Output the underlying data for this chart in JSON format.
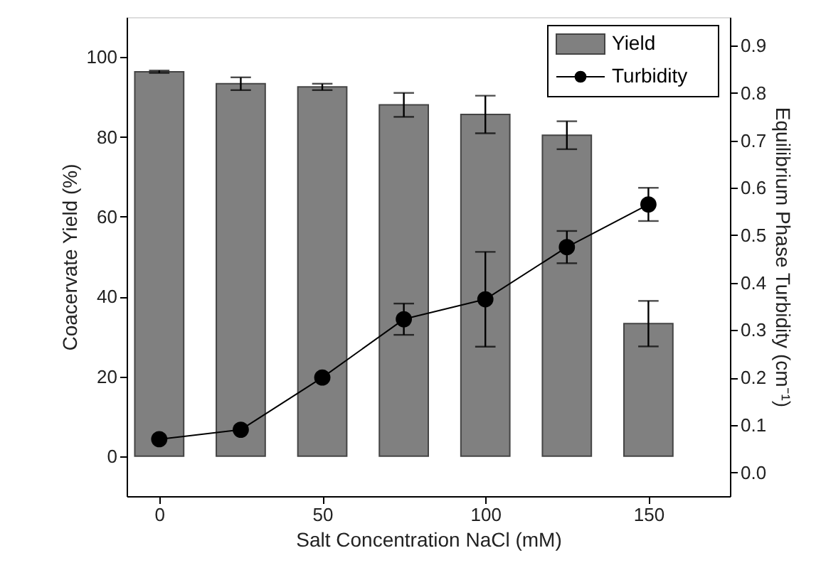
{
  "chart_data": {
    "type": "bar",
    "xlabel": "Salt Concentration NaCl (mM)",
    "ylabel": "Coacervate Yield (%)",
    "y2label": "Equilibrium Phase Turbidity (cm⁻¹)",
    "x": [
      0,
      25,
      50,
      75,
      100,
      125,
      150
    ],
    "xlim": [
      -10,
      175
    ],
    "xticks": [
      0,
      50,
      100,
      150
    ],
    "ylim": [
      -10,
      110
    ],
    "yticks": [
      0,
      20,
      40,
      60,
      80,
      100
    ],
    "y2lim": [
      -0.05,
      0.96
    ],
    "y2ticks": [
      {
        "value": 0,
        "label": "0.0"
      },
      0.1,
      0.2,
      0.3,
      0.4,
      0.5,
      0.6,
      0.7,
      0.8,
      0.9
    ],
    "series": [
      {
        "name": "Yield",
        "color": "#808080",
        "values": [
          96.3,
          93.3,
          92.5,
          88,
          85.6,
          80.4,
          33.2
        ],
        "errors": [
          0.3,
          1.6,
          0.8,
          3,
          4.7,
          3.5,
          5.7
        ]
      },
      {
        "name": "Turbidity",
        "type": "line",
        "axis": "y2",
        "color": "#000000",
        "marker": "circle",
        "values": [
          0.07,
          0.09,
          0.2,
          0.323,
          0.365,
          0.475,
          0.565
        ],
        "errors": [
          null,
          null,
          null,
          0.033,
          0.1,
          0.034,
          0.035
        ]
      }
    ],
    "legend": "top right",
    "grid": false
  }
}
